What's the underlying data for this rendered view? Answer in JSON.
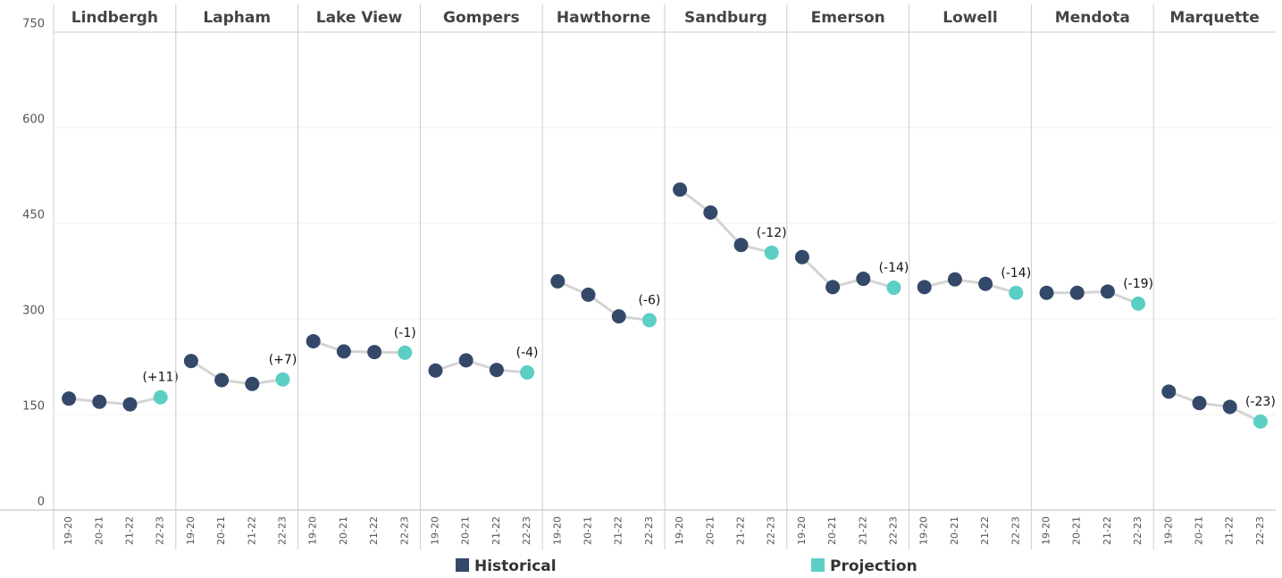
{
  "chart_data": {
    "type": "line",
    "categories": [
      "19-20",
      "20-21",
      "21-22",
      "22-23"
    ],
    "ylim": [
      0,
      750
    ],
    "yticks": [
      0,
      150,
      300,
      450,
      600,
      750
    ],
    "grid": true,
    "line_color": "#d4d4d4",
    "series": [
      {
        "name": "Historical",
        "color": "#34496a"
      },
      {
        "name": "Projection",
        "color": "#5ccfc5"
      }
    ],
    "panels": [
      {
        "name": "Lindbergh",
        "historical": [
          175,
          170,
          166,
          null
        ],
        "projection": [
          null,
          null,
          null,
          177
        ],
        "annotation": "(+11)"
      },
      {
        "name": "Lapham",
        "historical": [
          234,
          204,
          198,
          null
        ],
        "projection": [
          null,
          null,
          null,
          205
        ],
        "annotation": "(+7)"
      },
      {
        "name": "Lake View",
        "historical": [
          265,
          249,
          248,
          null
        ],
        "projection": [
          null,
          null,
          null,
          247
        ],
        "annotation": "(-1)"
      },
      {
        "name": "Gompers",
        "historical": [
          219,
          235,
          220,
          null
        ],
        "projection": [
          null,
          null,
          null,
          216
        ],
        "annotation": "(-4)"
      },
      {
        "name": "Hawthorne",
        "historical": [
          359,
          338,
          304,
          null
        ],
        "projection": [
          null,
          null,
          null,
          298
        ],
        "annotation": "(-6)"
      },
      {
        "name": "Sandburg",
        "historical": [
          503,
          467,
          416,
          null
        ],
        "projection": [
          null,
          null,
          null,
          404
        ],
        "annotation": "(-12)"
      },
      {
        "name": "Emerson",
        "historical": [
          397,
          350,
          363,
          null
        ],
        "projection": [
          null,
          null,
          null,
          349
        ],
        "annotation": "(-14)"
      },
      {
        "name": "Lowell",
        "historical": [
          350,
          362,
          355,
          null
        ],
        "projection": [
          null,
          null,
          null,
          341
        ],
        "annotation": "(-14)"
      },
      {
        "name": "Mendota",
        "historical": [
          341,
          341,
          343,
          null
        ],
        "projection": [
          null,
          null,
          null,
          324
        ],
        "annotation": "(-19)"
      },
      {
        "name": "Marquette",
        "historical": [
          186,
          168,
          162,
          null
        ],
        "projection": [
          null,
          null,
          null,
          139
        ],
        "annotation": "(-23)"
      }
    ]
  }
}
